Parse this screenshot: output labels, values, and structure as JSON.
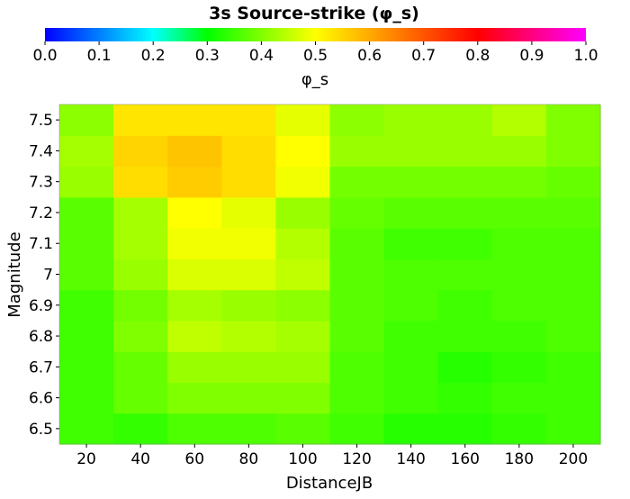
{
  "chart_data": {
    "type": "heatmap",
    "title": "3s Source-strike (φ_s)",
    "xlabel": "DistanceJB",
    "ylabel": "Magnitude",
    "x": [
      20,
      40,
      60,
      80,
      100,
      120,
      140,
      160,
      180,
      200
    ],
    "y": [
      6.5,
      6.6,
      6.7,
      6.8,
      6.9,
      7.0,
      7.1,
      7.2,
      7.3,
      7.4,
      7.5
    ],
    "x_tick_labels": [
      "20",
      "40",
      "60",
      "80",
      "100",
      "120",
      "140",
      "160",
      "180",
      "200"
    ],
    "y_tick_labels": [
      "6.5",
      "6.6",
      "6.7",
      "6.8",
      "6.9",
      "7",
      "7.1",
      "7.2",
      "7.3",
      "7.4",
      "7.5"
    ],
    "values": [
      [
        0.35,
        0.34,
        0.36,
        0.36,
        0.37,
        0.35,
        0.33,
        0.33,
        0.34,
        0.35
      ],
      [
        0.35,
        0.38,
        0.4,
        0.4,
        0.4,
        0.36,
        0.35,
        0.34,
        0.35,
        0.35
      ],
      [
        0.35,
        0.38,
        0.42,
        0.42,
        0.42,
        0.36,
        0.35,
        0.33,
        0.34,
        0.35
      ],
      [
        0.35,
        0.4,
        0.45,
        0.44,
        0.43,
        0.37,
        0.35,
        0.35,
        0.35,
        0.36
      ],
      [
        0.35,
        0.39,
        0.43,
        0.42,
        0.41,
        0.37,
        0.36,
        0.35,
        0.36,
        0.36
      ],
      [
        0.37,
        0.42,
        0.47,
        0.47,
        0.45,
        0.37,
        0.36,
        0.36,
        0.36,
        0.36
      ],
      [
        0.37,
        0.43,
        0.49,
        0.49,
        0.44,
        0.37,
        0.35,
        0.35,
        0.36,
        0.36
      ],
      [
        0.37,
        0.43,
        0.5,
        0.48,
        0.42,
        0.38,
        0.37,
        0.37,
        0.37,
        0.37
      ],
      [
        0.42,
        0.54,
        0.56,
        0.54,
        0.49,
        0.39,
        0.39,
        0.39,
        0.39,
        0.38
      ],
      [
        0.43,
        0.55,
        0.57,
        0.54,
        0.5,
        0.42,
        0.42,
        0.42,
        0.42,
        0.4
      ],
      [
        0.41,
        0.53,
        0.53,
        0.53,
        0.48,
        0.41,
        0.42,
        0.42,
        0.44,
        0.4
      ]
    ],
    "colorbar": {
      "label": "φ_s",
      "range": [
        0.0,
        1.0
      ],
      "ticks": [
        "0.0",
        "0.1",
        "0.2",
        "0.3",
        "0.4",
        "0.5",
        "0.6",
        "0.7",
        "0.8",
        "0.9",
        "1.0"
      ]
    },
    "grid": false
  }
}
